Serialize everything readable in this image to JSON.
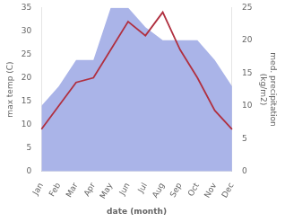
{
  "chart_data": {
    "type": "line",
    "categories": [
      "Jan",
      "Feb",
      "Mar",
      "Apr",
      "May",
      "Jun",
      "Jul",
      "Aug",
      "Sep",
      "Oct",
      "Nov",
      "Dec"
    ],
    "series": [
      {
        "type": "area",
        "axis": "y2",
        "color": "#aab4e8",
        "values": [
          10,
          13,
          17,
          17,
          25,
          25,
          22,
          20,
          20,
          20,
          17,
          13
        ]
      },
      {
        "type": "line",
        "color": "#b03040",
        "values": [
          9,
          14,
          19,
          20,
          26,
          32,
          29,
          34,
          26,
          20,
          13,
          9
        ]
      }
    ],
    "xlabel": "date (month)",
    "ylabel": "max temp (C)",
    "y2label": "med. precipitation\n(kg/m2)",
    "ylim": [
      0,
      35
    ],
    "yticks": [
      0,
      5,
      10,
      15,
      20,
      25,
      30,
      35
    ],
    "y2lim": [
      0,
      25
    ],
    "y2ticks": [
      0,
      5,
      10,
      15,
      20,
      25
    ],
    "grid": false
  }
}
